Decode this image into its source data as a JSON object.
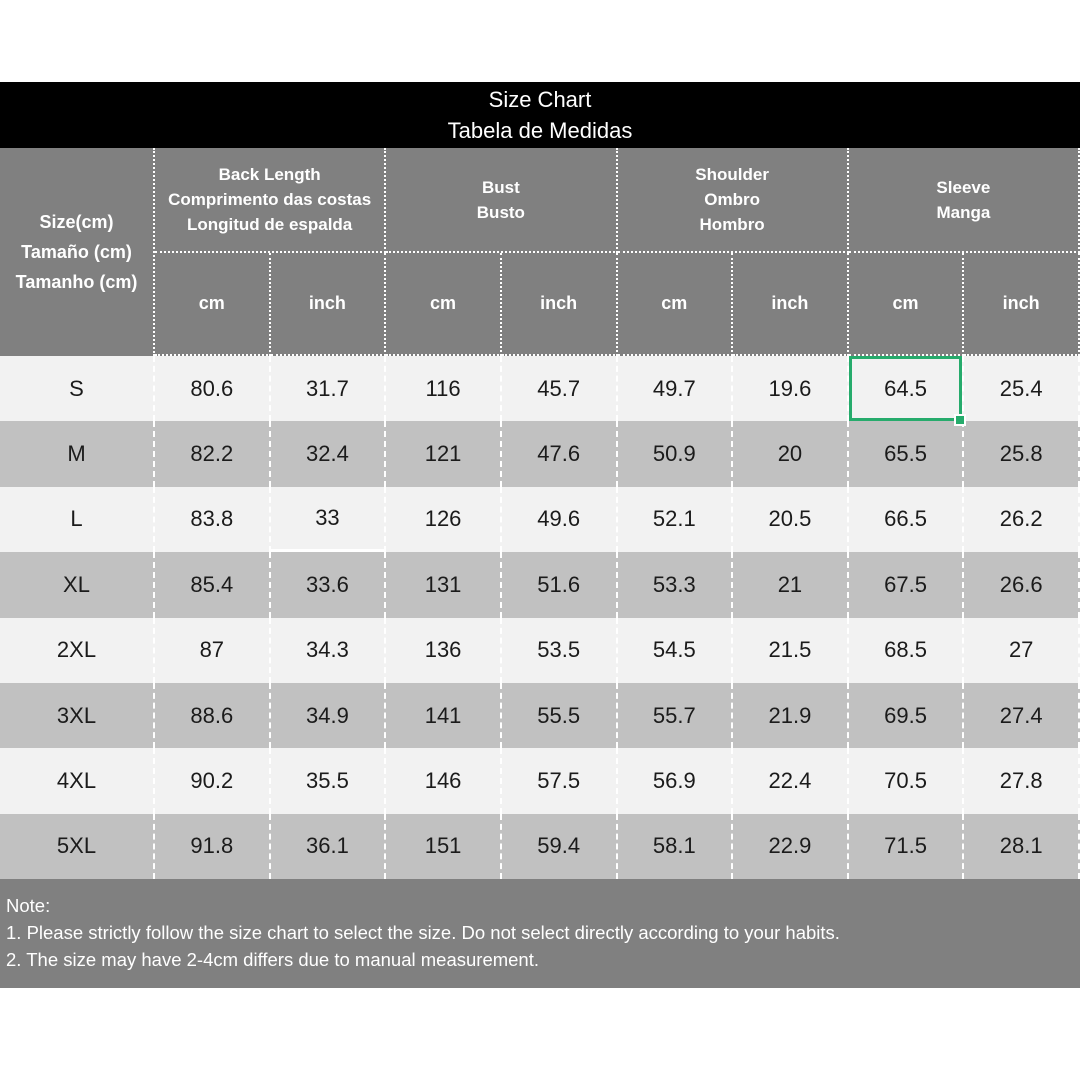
{
  "title": {
    "line1": "Size Chart",
    "line2": "Tabela de Medidas"
  },
  "size_header": [
    "Size(cm)",
    "Tamaño (cm)",
    "Tamanho (cm)"
  ],
  "groups": [
    {
      "id": "back-length",
      "lines": [
        "Back Length",
        "Comprimento das costas",
        "Longitud de espalda"
      ]
    },
    {
      "id": "bust",
      "lines": [
        "Bust",
        "Busto"
      ]
    },
    {
      "id": "shoulder",
      "lines": [
        "Shoulder",
        "Ombro",
        "Hombro"
      ]
    },
    {
      "id": "sleeve",
      "lines": [
        "Sleeve",
        "Manga"
      ]
    }
  ],
  "units": [
    "cm",
    "inch",
    "cm",
    "inch",
    "cm",
    "inch",
    "cm",
    "inch"
  ],
  "rows": [
    {
      "size": "S",
      "values": [
        "80.6",
        "31.7",
        "116",
        "45.7",
        "49.7",
        "19.6",
        "64.5",
        "25.4"
      ]
    },
    {
      "size": "M",
      "values": [
        "82.2",
        "32.4",
        "121",
        "47.6",
        "50.9",
        "20",
        "65.5",
        "25.8"
      ]
    },
    {
      "size": "L",
      "values": [
        "83.8",
        "33",
        "126",
        "49.6",
        "52.1",
        "20.5",
        "66.5",
        "26.2"
      ]
    },
    {
      "size": "XL",
      "values": [
        "85.4",
        "33.6",
        "131",
        "51.6",
        "53.3",
        "21",
        "67.5",
        "26.6"
      ]
    },
    {
      "size": "2XL",
      "values": [
        "87",
        "34.3",
        "136",
        "53.5",
        "54.5",
        "21.5",
        "68.5",
        "27"
      ]
    },
    {
      "size": "3XL",
      "values": [
        "88.6",
        "34.9",
        "141",
        "55.5",
        "55.7",
        "21.9",
        "69.5",
        "27.4"
      ]
    },
    {
      "size": "4XL",
      "values": [
        "90.2",
        "35.5",
        "146",
        "57.5",
        "56.9",
        "22.4",
        "70.5",
        "27.8"
      ]
    },
    {
      "size": "5XL",
      "values": [
        "91.8",
        "36.1",
        "151",
        "59.4",
        "58.1",
        "22.9",
        "71.5",
        "28.1"
      ]
    }
  ],
  "selection": {
    "row_index": 0,
    "col_index": 6,
    "value": "64.5",
    "color": "#26ab6c"
  },
  "artifact_underline": {
    "row_index": 2,
    "col_index": 1
  },
  "note": {
    "label": "Note:",
    "lines": [
      "1. Please strictly follow the size chart to select the size. Do not select directly according to your habits.",
      "2. The size may have 2-4cm differs due to manual measurement."
    ]
  },
  "colors": {
    "title_bg": "#000000",
    "header_bg": "#808080",
    "note_bg": "#808080",
    "row_light": "#f2f2f2",
    "row_dark": "#c1c1c1",
    "selection_green": "#26ab6c",
    "text_dark": "#1b1b1b",
    "text_white": "#ffffff"
  }
}
